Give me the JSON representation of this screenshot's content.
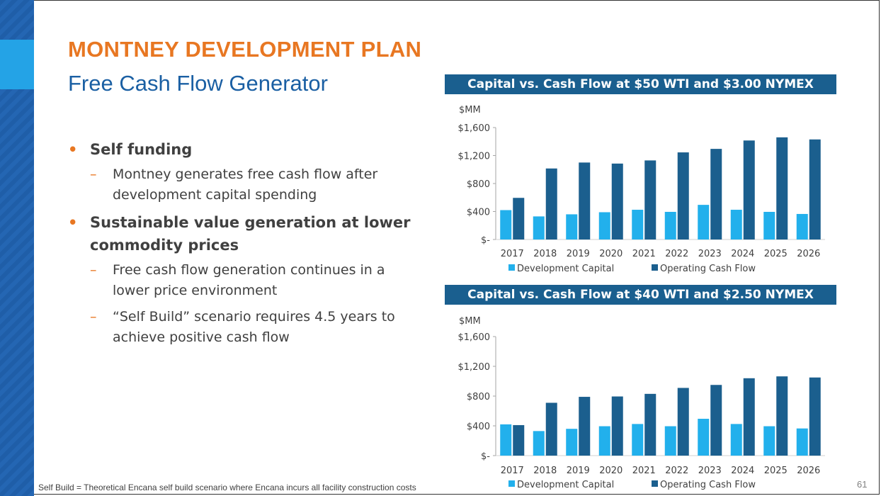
{
  "slide": {
    "title": "MONTNEY DEVELOPMENT PLAN",
    "subtitle": "Free Cash Flow Generator",
    "bullets": [
      {
        "text": "Self funding",
        "subs": [
          "Montney generates free cash flow after development capital spending"
        ]
      },
      {
        "text": "Sustainable value generation at lower commodity prices",
        "subs": [
          "Free cash flow generation continues in a lower price environment",
          "“Self Build” scenario requires 4.5 years to achieve positive cash flow"
        ]
      }
    ],
    "footnote": "Self Build = Theoretical Encana self build scenario where Encana incurs all facility construction costs",
    "page_number": "61"
  },
  "chart_data": [
    {
      "type": "bar",
      "title": "Capital vs. Cash Flow at $50 WTI and $3.00 NYMEX",
      "ylabel": "$MM",
      "ylim": [
        0,
        1600
      ],
      "yticks": [
        {
          "v": 0,
          "label": "$-"
        },
        {
          "v": 400,
          "label": "$400"
        },
        {
          "v": 800,
          "label": "$800"
        },
        {
          "v": 1200,
          "label": "$1,200"
        },
        {
          "v": 1600,
          "label": "$1,600"
        }
      ],
      "categories": [
        "2017",
        "2018",
        "2019",
        "2020",
        "2021",
        "2022",
        "2023",
        "2024",
        "2025",
        "2026"
      ],
      "series": [
        {
          "name": "Development Capital",
          "color": "#22b0ec",
          "values": [
            420,
            330,
            360,
            390,
            425,
            395,
            495,
            425,
            395,
            365
          ]
        },
        {
          "name": "Operating Cash Flow",
          "color": "#1b5f8e",
          "values": [
            595,
            1015,
            1100,
            1085,
            1130,
            1245,
            1295,
            1415,
            1460,
            1430
          ]
        }
      ],
      "legend": "bottom"
    },
    {
      "type": "bar",
      "title": "Capital vs. Cash Flow at $40 WTI and $2.50 NYMEX",
      "ylabel": "$MM",
      "ylim": [
        0,
        1600
      ],
      "yticks": [
        {
          "v": 0,
          "label": "$-"
        },
        {
          "v": 400,
          "label": "$400"
        },
        {
          "v": 800,
          "label": "$800"
        },
        {
          "v": 1200,
          "label": "$1,200"
        },
        {
          "v": 1600,
          "label": "$1,600"
        }
      ],
      "categories": [
        "2017",
        "2018",
        "2019",
        "2020",
        "2021",
        "2022",
        "2023",
        "2024",
        "2025",
        "2026"
      ],
      "series": [
        {
          "name": "Development Capital",
          "color": "#22b0ec",
          "values": [
            420,
            330,
            360,
            395,
            425,
            395,
            495,
            425,
            395,
            365
          ]
        },
        {
          "name": "Operating Cash Flow",
          "color": "#1b5f8e",
          "values": [
            410,
            710,
            790,
            795,
            830,
            910,
            950,
            1040,
            1065,
            1050
          ]
        }
      ],
      "legend": "bottom"
    }
  ]
}
